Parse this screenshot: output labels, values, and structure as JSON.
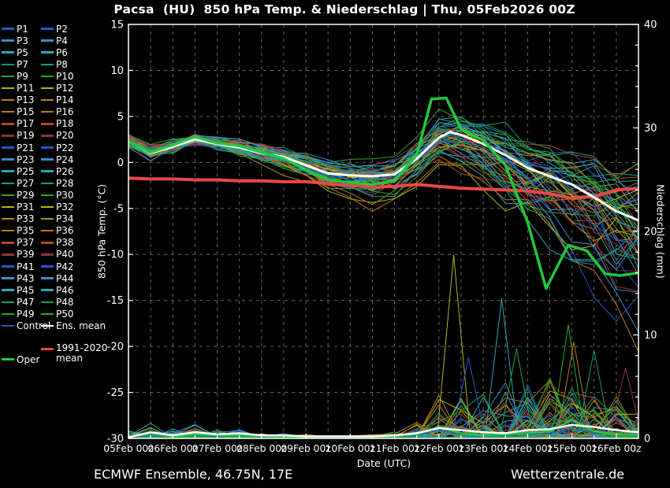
{
  "title": "Pacsa  (HU)  850 hPa Temp. & Niederschlag | Thu, 05Feb2026 00Z",
  "footer": {
    "left": "ECMWF Ensemble, 46.75N, 17E",
    "right": "Wetterzentrale.de"
  },
  "legend": {
    "members": [
      {
        "label": "P1",
        "color": "#2458c8"
      },
      {
        "label": "P2",
        "color": "#2458c8"
      },
      {
        "label": "P3",
        "color": "#3c8cc8"
      },
      {
        "label": "P4",
        "color": "#3c8cc8"
      },
      {
        "label": "P5",
        "color": "#28a8b4"
      },
      {
        "label": "P6",
        "color": "#28a8b4"
      },
      {
        "label": "P7",
        "color": "#14a078"
      },
      {
        "label": "P8",
        "color": "#14a078"
      },
      {
        "label": "P9",
        "color": "#28a828"
      },
      {
        "label": "P10",
        "color": "#28a828"
      },
      {
        "label": "P11",
        "color": "#b4b414"
      },
      {
        "label": "P12",
        "color": "#b4b414"
      },
      {
        "label": "P13",
        "color": "#b48c14"
      },
      {
        "label": "P14",
        "color": "#b48c14"
      },
      {
        "label": "P15",
        "color": "#c07814"
      },
      {
        "label": "P16",
        "color": "#c07814"
      },
      {
        "label": "P17",
        "color": "#b44a14"
      },
      {
        "label": "P18",
        "color": "#b44a14"
      },
      {
        "label": "P19",
        "color": "#963232"
      },
      {
        "label": "P20",
        "color": "#963232"
      },
      {
        "label": "P21",
        "color": "#2458c8"
      },
      {
        "label": "P22",
        "color": "#2458c8"
      },
      {
        "label": "P23",
        "color": "#3c8cc8"
      },
      {
        "label": "P24",
        "color": "#3c8cc8"
      },
      {
        "label": "P25",
        "color": "#28a8b4"
      },
      {
        "label": "P26",
        "color": "#28a8b4"
      },
      {
        "label": "P27",
        "color": "#14a078"
      },
      {
        "label": "P28",
        "color": "#14a078"
      },
      {
        "label": "P29",
        "color": "#28a828"
      },
      {
        "label": "P30",
        "color": "#28a828"
      },
      {
        "label": "P31",
        "color": "#b4b414"
      },
      {
        "label": "P32",
        "color": "#b4b414"
      },
      {
        "label": "P33",
        "color": "#b48c14"
      },
      {
        "label": "P34",
        "color": "#b48c14"
      },
      {
        "label": "P35",
        "color": "#c07814"
      },
      {
        "label": "P36",
        "color": "#c07814"
      },
      {
        "label": "P37",
        "color": "#b44a14"
      },
      {
        "label": "P38",
        "color": "#b44a14"
      },
      {
        "label": "P39",
        "color": "#963232"
      },
      {
        "label": "P40",
        "color": "#963232"
      },
      {
        "label": "P41",
        "color": "#2458c8"
      },
      {
        "label": "P42",
        "color": "#2458c8"
      },
      {
        "label": "P43",
        "color": "#3c8cc8"
      },
      {
        "label": "P44",
        "color": "#3c8cc8"
      },
      {
        "label": "P45",
        "color": "#28a8b4"
      },
      {
        "label": "P46",
        "color": "#28a8b4"
      },
      {
        "label": "P47",
        "color": "#14a078"
      },
      {
        "label": "P48",
        "color": "#14a078"
      },
      {
        "label": "P49",
        "color": "#28a828"
      },
      {
        "label": "P50",
        "color": "#28a828"
      }
    ],
    "control": {
      "label": "Control",
      "color": "#2458c8"
    },
    "ens_mean": {
      "label": "Ens. mean",
      "color": "#ffffff"
    },
    "climate": {
      "label_line1": "1991-2020",
      "label_line2": "mean",
      "color": "#ea4747"
    },
    "oper": {
      "label": "Oper",
      "color": "#22c83c"
    }
  },
  "chart_data": {
    "type": "line",
    "title": "Pacsa  (HU)  850 hPa Temp. & Niederschlag | Thu, 05Feb2026 00Z",
    "x": {
      "label": "Date (UTC)",
      "tick_labels": [
        "05Feb 00z",
        "06Feb 00z",
        "07Feb 00z",
        "08Feb 00z",
        "09Feb 00z",
        "10Feb 00z",
        "11Feb 00z",
        "12Feb 00z",
        "13Feb 00z",
        "14Feb 00z",
        "15Feb 00z",
        "16Feb 00z"
      ],
      "hours_range": [
        0,
        276
      ],
      "tick_interval_hours": 24,
      "grid_interval_hours": 12
    },
    "y_left": {
      "label": "850 hPa Temp. (°C)",
      "min": -30,
      "max": 15,
      "ticks": [
        15,
        10,
        5,
        0,
        -5,
        -10,
        -15,
        -20,
        -25,
        -30
      ],
      "grid": "dashed"
    },
    "y_right": {
      "label": "Niederschlag (mm)",
      "min": 0,
      "max": 40,
      "ticks": [
        40,
        30,
        20,
        10,
        0
      ],
      "minor_tick_interval": 2
    },
    "sample_hours": [
      0,
      12,
      24,
      36,
      48,
      60,
      72,
      84,
      96,
      108,
      120,
      132,
      144,
      156,
      168,
      180,
      192,
      204,
      216,
      228,
      240,
      252,
      264,
      276
    ],
    "series": [
      {
        "id": "ens_mean_temp",
        "name": "Ens. mean",
        "axis": "left",
        "color": "#ffffff",
        "width": 3,
        "x_hours": [
          0,
          12,
          24,
          36,
          48,
          60,
          72,
          84,
          96,
          108,
          120,
          132,
          144,
          156,
          168,
          174,
          180,
          192,
          204,
          216,
          228,
          240,
          252,
          264,
          276
        ],
        "values": [
          2.3,
          1.0,
          1.7,
          2.5,
          2.0,
          1.6,
          1.0,
          0.6,
          -0.3,
          -1.2,
          -1.4,
          -1.5,
          -1.3,
          0.4,
          2.7,
          3.3,
          3.0,
          2.0,
          0.8,
          -0.6,
          -1.5,
          -2.4,
          -3.8,
          -5.3,
          -6.3
        ]
      },
      {
        "id": "oper_temp",
        "name": "Oper",
        "axis": "left",
        "color": "#22c83c",
        "width": 3.5,
        "x_hours": [
          0,
          12,
          24,
          36,
          48,
          60,
          72,
          84,
          96,
          108,
          120,
          132,
          144,
          156,
          164,
          172,
          180,
          192,
          204,
          216,
          226,
          238,
          248,
          258,
          266,
          276
        ],
        "values": [
          2.3,
          1.1,
          1.9,
          2.8,
          2.1,
          1.8,
          1.1,
          0.4,
          -0.8,
          -1.9,
          -2.2,
          -2.4,
          -2.0,
          0.8,
          6.9,
          7.0,
          3.6,
          2.4,
          -0.3,
          -6.5,
          -13.7,
          -9.0,
          -9.6,
          -12.1,
          -12.3,
          -12.0
        ]
      },
      {
        "id": "control_temp",
        "name": "Control",
        "axis": "left",
        "color": "#2458c8",
        "width": 1.2,
        "values": [
          2.4,
          0.9,
          1.6,
          2.4,
          1.9,
          1.5,
          0.9,
          0.4,
          -0.6,
          -1.5,
          -1.8,
          -1.9,
          -1.6,
          0.5,
          3.6,
          2.6,
          1.1,
          0.4,
          -1.6,
          -3.2,
          -5.0,
          -6.8,
          -8.4,
          -9.0
        ]
      },
      {
        "id": "climate_mean_temp",
        "name": "1991-2020 mean",
        "axis": "left",
        "color": "#ea4747",
        "width": 4,
        "values": [
          -1.7,
          -1.8,
          -1.8,
          -1.9,
          -1.9,
          -2.0,
          -2.0,
          -2.1,
          -2.1,
          -2.3,
          -2.5,
          -2.7,
          -2.6,
          -2.4,
          -2.6,
          -2.8,
          -2.9,
          -3.0,
          -3.1,
          -3.4,
          -3.9,
          -3.7,
          -3.0,
          -2.8
        ]
      },
      {
        "id": "ens_mean_precip",
        "name": "Ens. mean",
        "axis": "right",
        "color": "#ffffff",
        "width": 2.5,
        "values": [
          0.1,
          0.6,
          0.3,
          0.6,
          0.4,
          0.5,
          0.3,
          0.3,
          0.2,
          0.2,
          0.2,
          0.2,
          0.3,
          0.5,
          1.0,
          0.8,
          0.6,
          0.5,
          0.8,
          0.9,
          1.3,
          1.1,
          0.8,
          0.6
        ]
      },
      {
        "id": "oper_precip",
        "name": "Oper",
        "axis": "right",
        "color": "#22c83c",
        "width": 2.5,
        "values": [
          0.1,
          0.5,
          0.2,
          0.4,
          0.3,
          0.3,
          0.2,
          0.2,
          0.1,
          0.1,
          0.1,
          0.1,
          0.2,
          0.4,
          1.1,
          0.5,
          0.3,
          0.4,
          0.5,
          0.7,
          1.8,
          0.7,
          0.4,
          0.3
        ]
      },
      {
        "id": "control_precip",
        "name": "Control",
        "axis": "right",
        "color": "#2458c8",
        "width": 1.2,
        "values": [
          0.0,
          0.4,
          0.2,
          0.3,
          0.2,
          0.3,
          0.1,
          0.2,
          0.1,
          0.1,
          0.0,
          0.1,
          0.1,
          0.3,
          0.8,
          0.4,
          0.3,
          0.3,
          0.4,
          0.5,
          0.9,
          0.6,
          0.4,
          0.2
        ]
      }
    ],
    "ensemble_envelope_temp": {
      "upper": [
        3.0,
        2.2,
        2.6,
        3.2,
        2.9,
        2.7,
        2.3,
        2.0,
        1.6,
        0.8,
        0.6,
        0.5,
        1.0,
        3.0,
        6.5,
        6.0,
        5.5,
        5.0,
        4.5,
        4.0,
        3.5,
        3.3,
        3.1,
        3.0
      ],
      "lower": [
        1.7,
        0.1,
        0.9,
        1.8,
        1.0,
        0.4,
        -0.4,
        -1.2,
        -2.6,
        -3.8,
        -4.6,
        -5.2,
        -4.8,
        -2.8,
        -0.8,
        -2.2,
        -3.8,
        -5.5,
        -7.5,
        -10.0,
        -13.0,
        -16.0,
        -19.0,
        -21.5
      ]
    },
    "notable_precip_spikes": [
      {
        "hour": 176,
        "mm": 17.7,
        "color": "#b4b414"
      },
      {
        "hour": 184,
        "mm": 7.8,
        "color": "#2458c8"
      },
      {
        "hour": 202,
        "mm": 13.5,
        "color": "#28a8b4"
      },
      {
        "hour": 210,
        "mm": 8.7,
        "color": "#28a828"
      },
      {
        "hour": 238,
        "mm": 11.0,
        "color": "#28a828"
      },
      {
        "hour": 241,
        "mm": 9.3,
        "color": "#c07814"
      },
      {
        "hour": 252,
        "mm": 8.5,
        "color": "#14a078"
      },
      {
        "hour": 269,
        "mm": 6.8,
        "color": "#963232"
      }
    ],
    "member_colors_cycle": [
      "#2458c8",
      "#3c8cc8",
      "#28a8b4",
      "#14a078",
      "#28a828",
      "#b4b414",
      "#b48c14",
      "#c07814",
      "#b44a14",
      "#963232"
    ],
    "member_count": 50,
    "grid_color": "#666666",
    "frame_color": "#ffffff"
  }
}
